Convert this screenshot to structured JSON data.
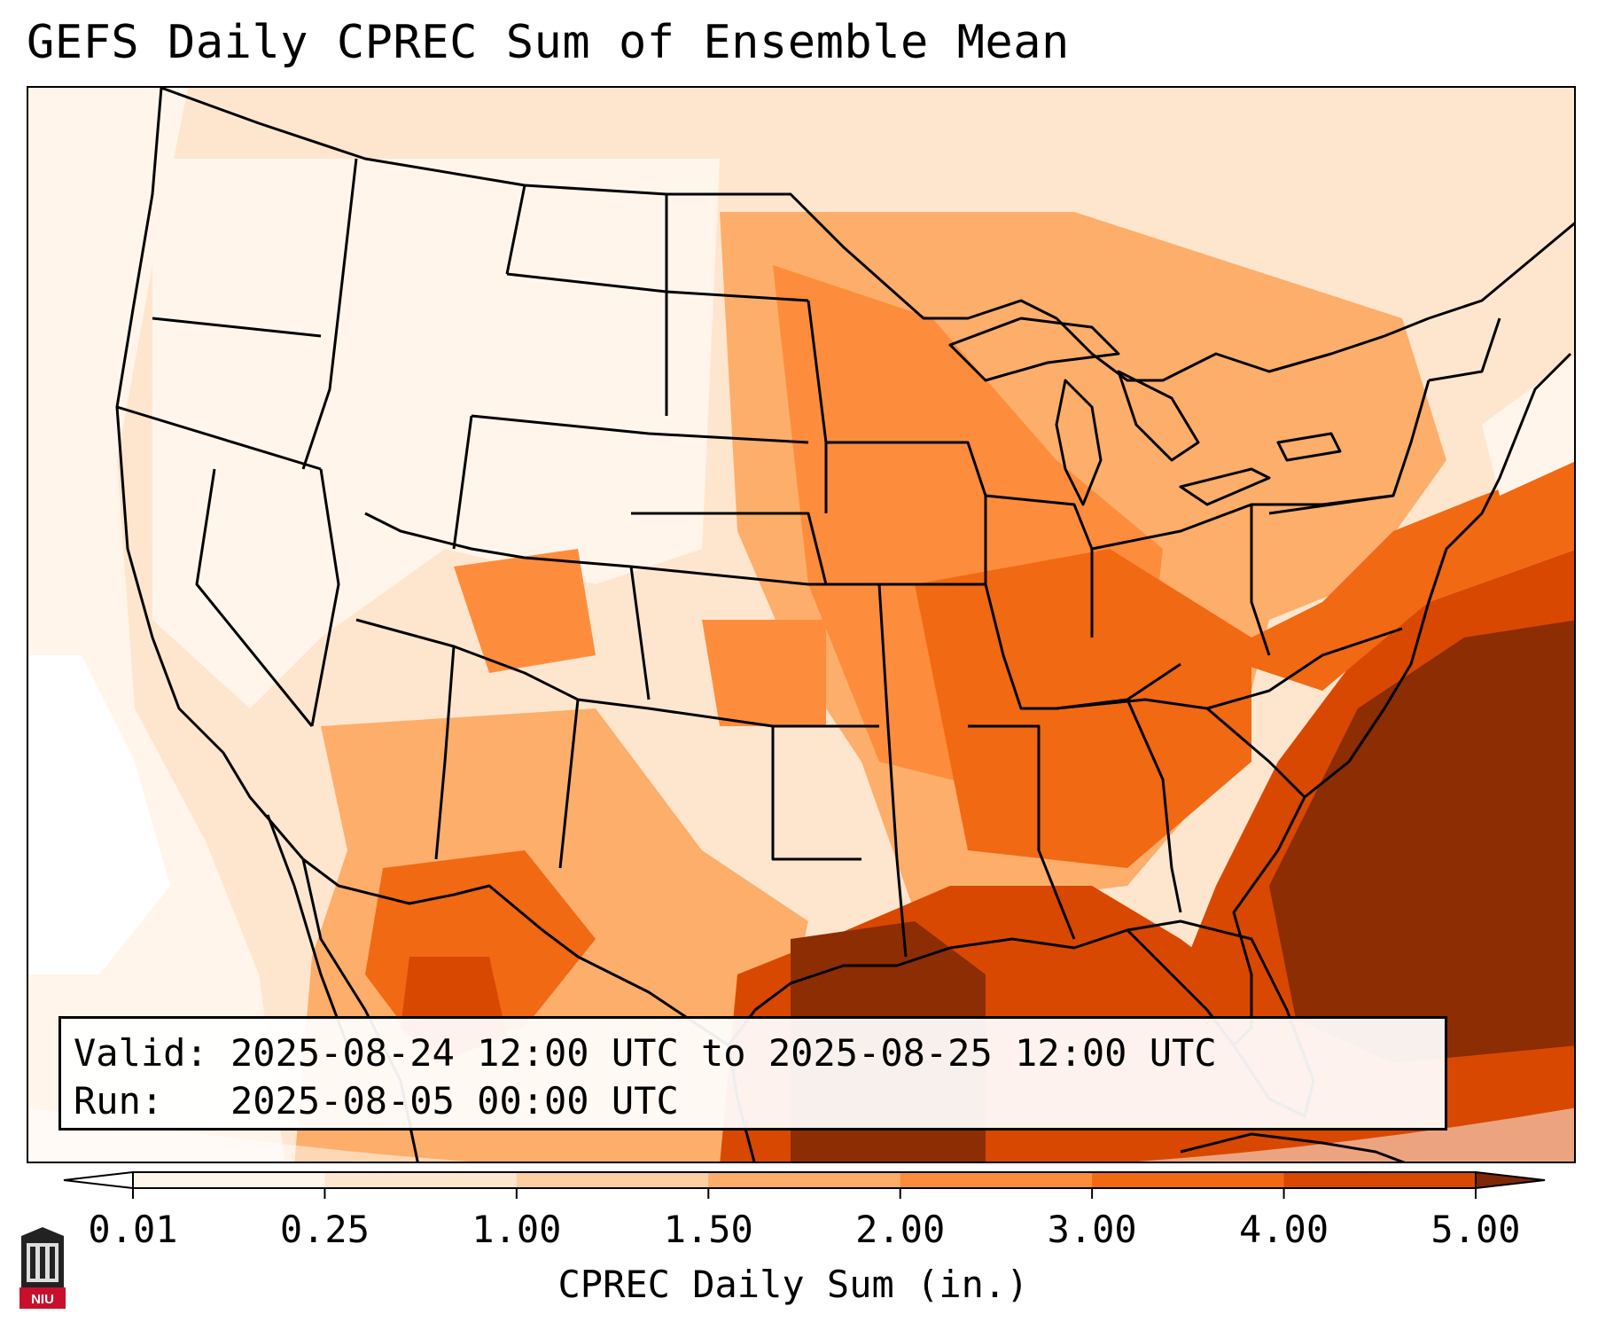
{
  "title": "GEFS Daily CPREC Sum of Ensemble Mean",
  "info": {
    "valid_label": "Valid:",
    "valid_value": "2025-08-24 12:00 UTC to 2025-08-25 12:00 UTC",
    "run_label": "Run:",
    "run_value": "2025-08-05 00:00 UTC"
  },
  "colorbar": {
    "label": "CPREC Daily Sum (in.)",
    "ticks": [
      "0.01",
      "0.25",
      "1.00",
      "1.50",
      "2.00",
      "3.00",
      "4.00",
      "5.00"
    ],
    "colors": [
      "#fff5eb",
      "#fee6ce",
      "#fdd0a2",
      "#fdae6b",
      "#fd8d3c",
      "#f16913",
      "#d94801",
      "#8c2d04"
    ],
    "under_color": "#ffffff",
    "over_color": "#7f2704"
  },
  "logo": {
    "text": "NIU"
  }
}
